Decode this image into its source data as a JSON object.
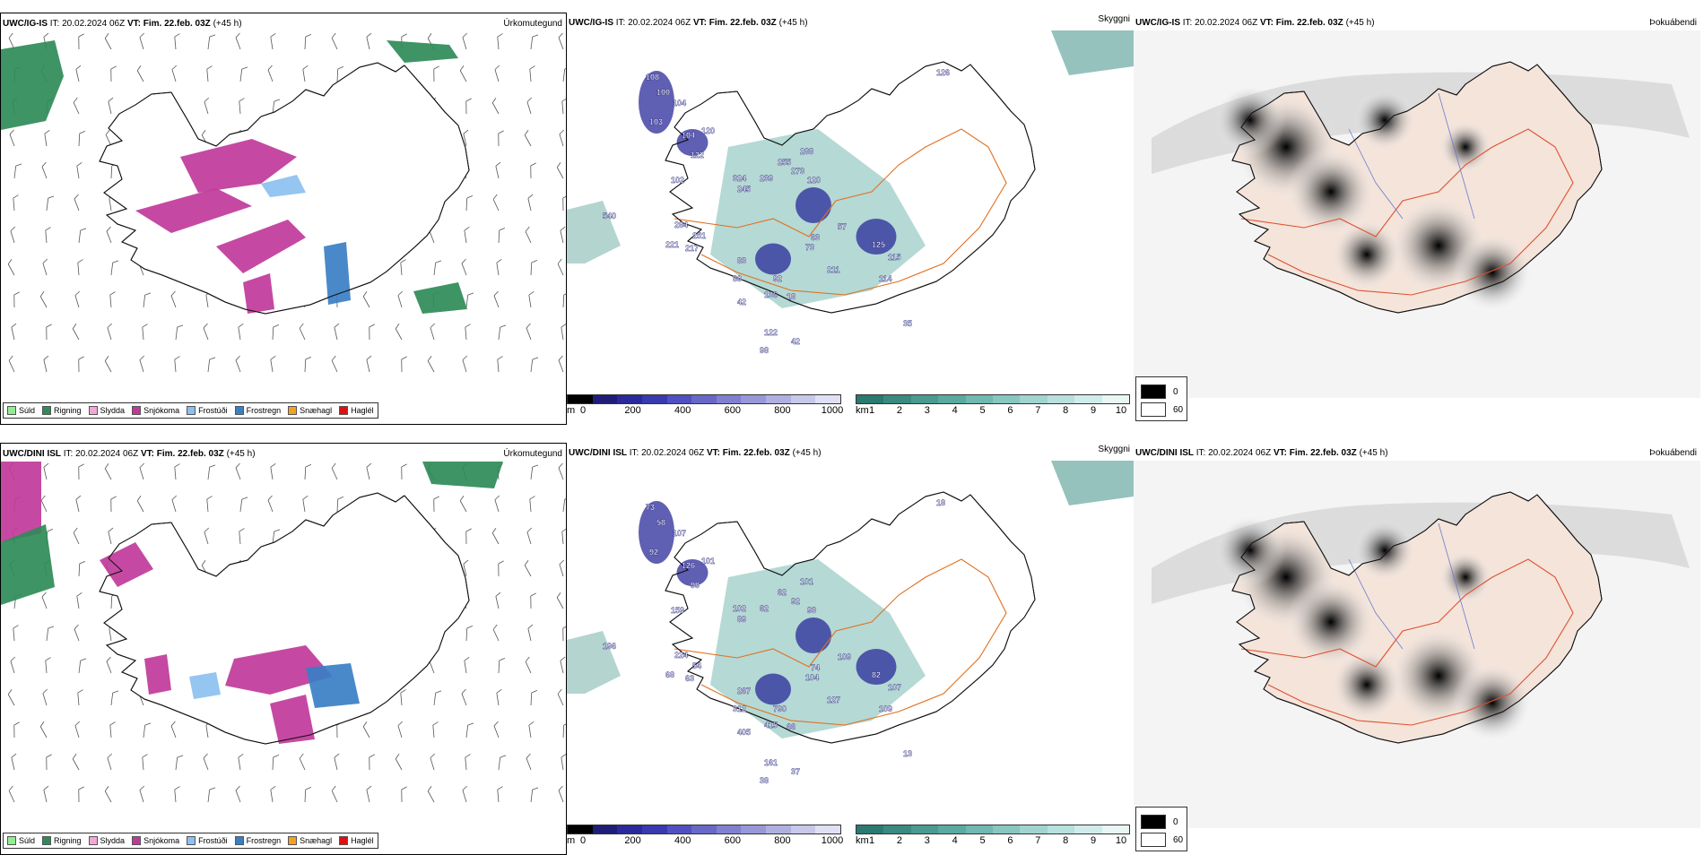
{
  "rows": [
    {
      "model": "UWC/IG-IS",
      "panels": [
        {
          "tag": "Úrkomutegund"
        },
        {
          "tag": "Skyggni"
        },
        {
          "tag": "Þokuábendi"
        }
      ],
      "visibility_labels": [
        "108",
        "100",
        "104",
        "103",
        "120",
        "104",
        "122",
        "102",
        "324",
        "245",
        "239",
        "255",
        "288",
        "273",
        "120",
        "540",
        "284",
        "251",
        "221",
        "217",
        "63",
        "57",
        "73",
        "83",
        "80",
        "92",
        "211",
        "125",
        "115",
        "114",
        "136",
        "42",
        "18",
        "122",
        "98",
        "42",
        "35",
        "126"
      ]
    },
    {
      "model": "UWC/DINI ISL",
      "panels": [
        {
          "tag": "Úrkomutegund"
        },
        {
          "tag": "Skyggni"
        },
        {
          "tag": "Þokuábendi"
        }
      ],
      "visibility_labels": [
        "73",
        "58",
        "107",
        "92",
        "101",
        "126",
        "99",
        "159",
        "102",
        "89",
        "62",
        "62",
        "101",
        "92",
        "93",
        "196",
        "224",
        "54",
        "68",
        "63",
        "74",
        "109",
        "104",
        "267",
        "312",
        "790",
        "127",
        "82",
        "107",
        "109",
        "415",
        "405",
        "66",
        "161",
        "38",
        "37",
        "13",
        "18"
      ]
    }
  ],
  "common": {
    "it_label": "IT:",
    "issue_time": "20.02.2024 06Z",
    "vt_label": "VT:",
    "valid_time": "Fim. 22.feb. 03Z",
    "lead": "(+45 h)"
  },
  "precip_legend": [
    {
      "label": "Súld",
      "color": "#90ee90"
    },
    {
      "label": "Rigning",
      "color": "#2e8b57"
    },
    {
      "label": "Slydda",
      "color": "#f4a6d7"
    },
    {
      "label": "Snjókoma",
      "color": "#c0399a"
    },
    {
      "label": "Frostúði",
      "color": "#8cc0f0"
    },
    {
      "label": "Frostregn",
      "color": "#3a7fc4"
    },
    {
      "label": "Snæhagl",
      "color": "#f5a020"
    },
    {
      "label": "Haglél",
      "color": "#e01010"
    }
  ],
  "cloud_base_scale": {
    "unit": "m",
    "ticks": [
      "0",
      "200",
      "400",
      "600",
      "800",
      "1000"
    ],
    "colors": [
      "#000000",
      "#1e1e78",
      "#2a2a9a",
      "#3a3ab0",
      "#5050c0",
      "#6868c8",
      "#8080d0",
      "#9898d8",
      "#b0b0e0",
      "#c8c8ea",
      "#e0e0f4"
    ]
  },
  "visibility_scale": {
    "unit": "km",
    "ticks": [
      "1",
      "2",
      "3",
      "4",
      "5",
      "6",
      "7",
      "8",
      "9",
      "10"
    ],
    "colors": [
      "#2a7a70",
      "#3a8a80",
      "#4a9a90",
      "#5aaaa0",
      "#70b8b0",
      "#88c6c0",
      "#a0d4d0",
      "#b8e0dc",
      "#d0ecea",
      "#e8f6f4"
    ]
  },
  "fog_legend": [
    {
      "label": "0",
      "color": "#000000"
    },
    {
      "label": "60",
      "color": "#ffffff"
    }
  ]
}
